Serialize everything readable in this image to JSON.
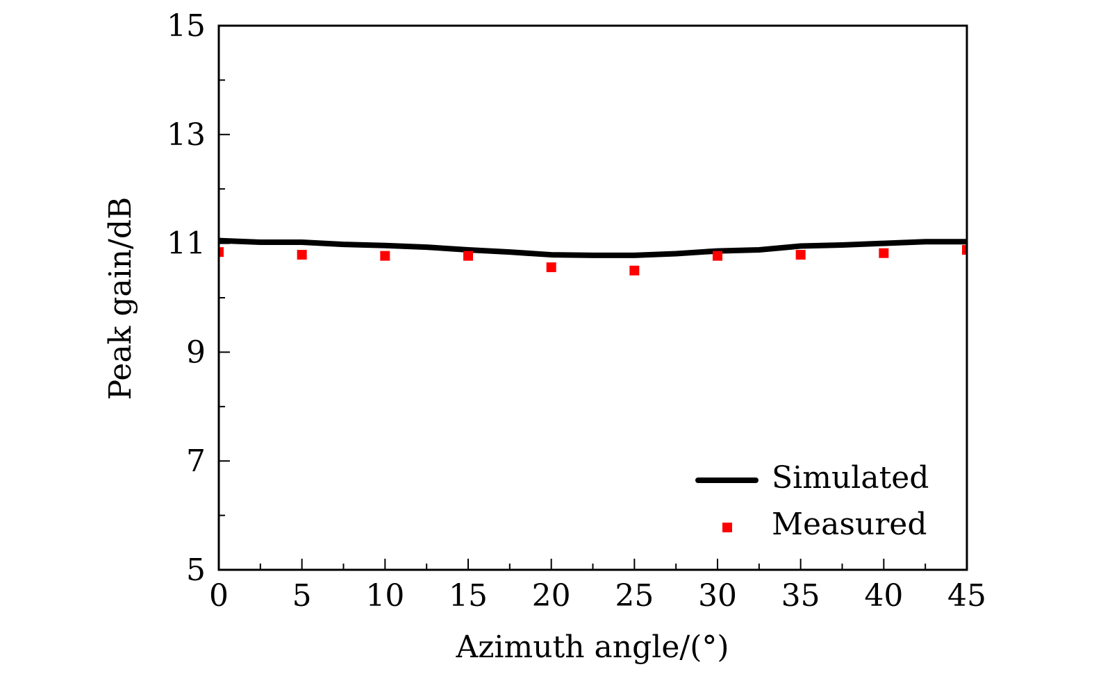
{
  "chart_data": {
    "type": "line",
    "title": "",
    "xlabel": "Azimuth angle/(°)",
    "ylabel": "Peak gain/dB",
    "xlim": [
      0,
      45
    ],
    "ylim": [
      5,
      15
    ],
    "xticks": [
      0,
      5,
      10,
      15,
      20,
      25,
      30,
      35,
      40,
      45
    ],
    "yticks": [
      5,
      7,
      9,
      11,
      13,
      15
    ],
    "grid": false,
    "legend_position": "bottom-right",
    "series": [
      {
        "name": "Simulated",
        "style": "line",
        "color": "#000000",
        "x": [
          0,
          2.5,
          5,
          7.5,
          10,
          12.5,
          15,
          17.5,
          20,
          22.5,
          25,
          27.5,
          30,
          32.5,
          35,
          37.5,
          40,
          42.5,
          45
        ],
        "y": [
          11.05,
          11.02,
          11.02,
          10.98,
          10.96,
          10.93,
          10.88,
          10.84,
          10.79,
          10.78,
          10.78,
          10.81,
          10.86,
          10.88,
          10.95,
          10.97,
          11.0,
          11.03,
          11.03
        ]
      },
      {
        "name": "Measured",
        "style": "marker",
        "color": "#ff0000",
        "x": [
          0,
          5,
          10,
          15,
          20,
          25,
          30,
          35,
          40,
          45
        ],
        "y": [
          10.84,
          10.79,
          10.77,
          10.77,
          10.56,
          10.5,
          10.77,
          10.79,
          10.82,
          10.88
        ]
      }
    ]
  }
}
